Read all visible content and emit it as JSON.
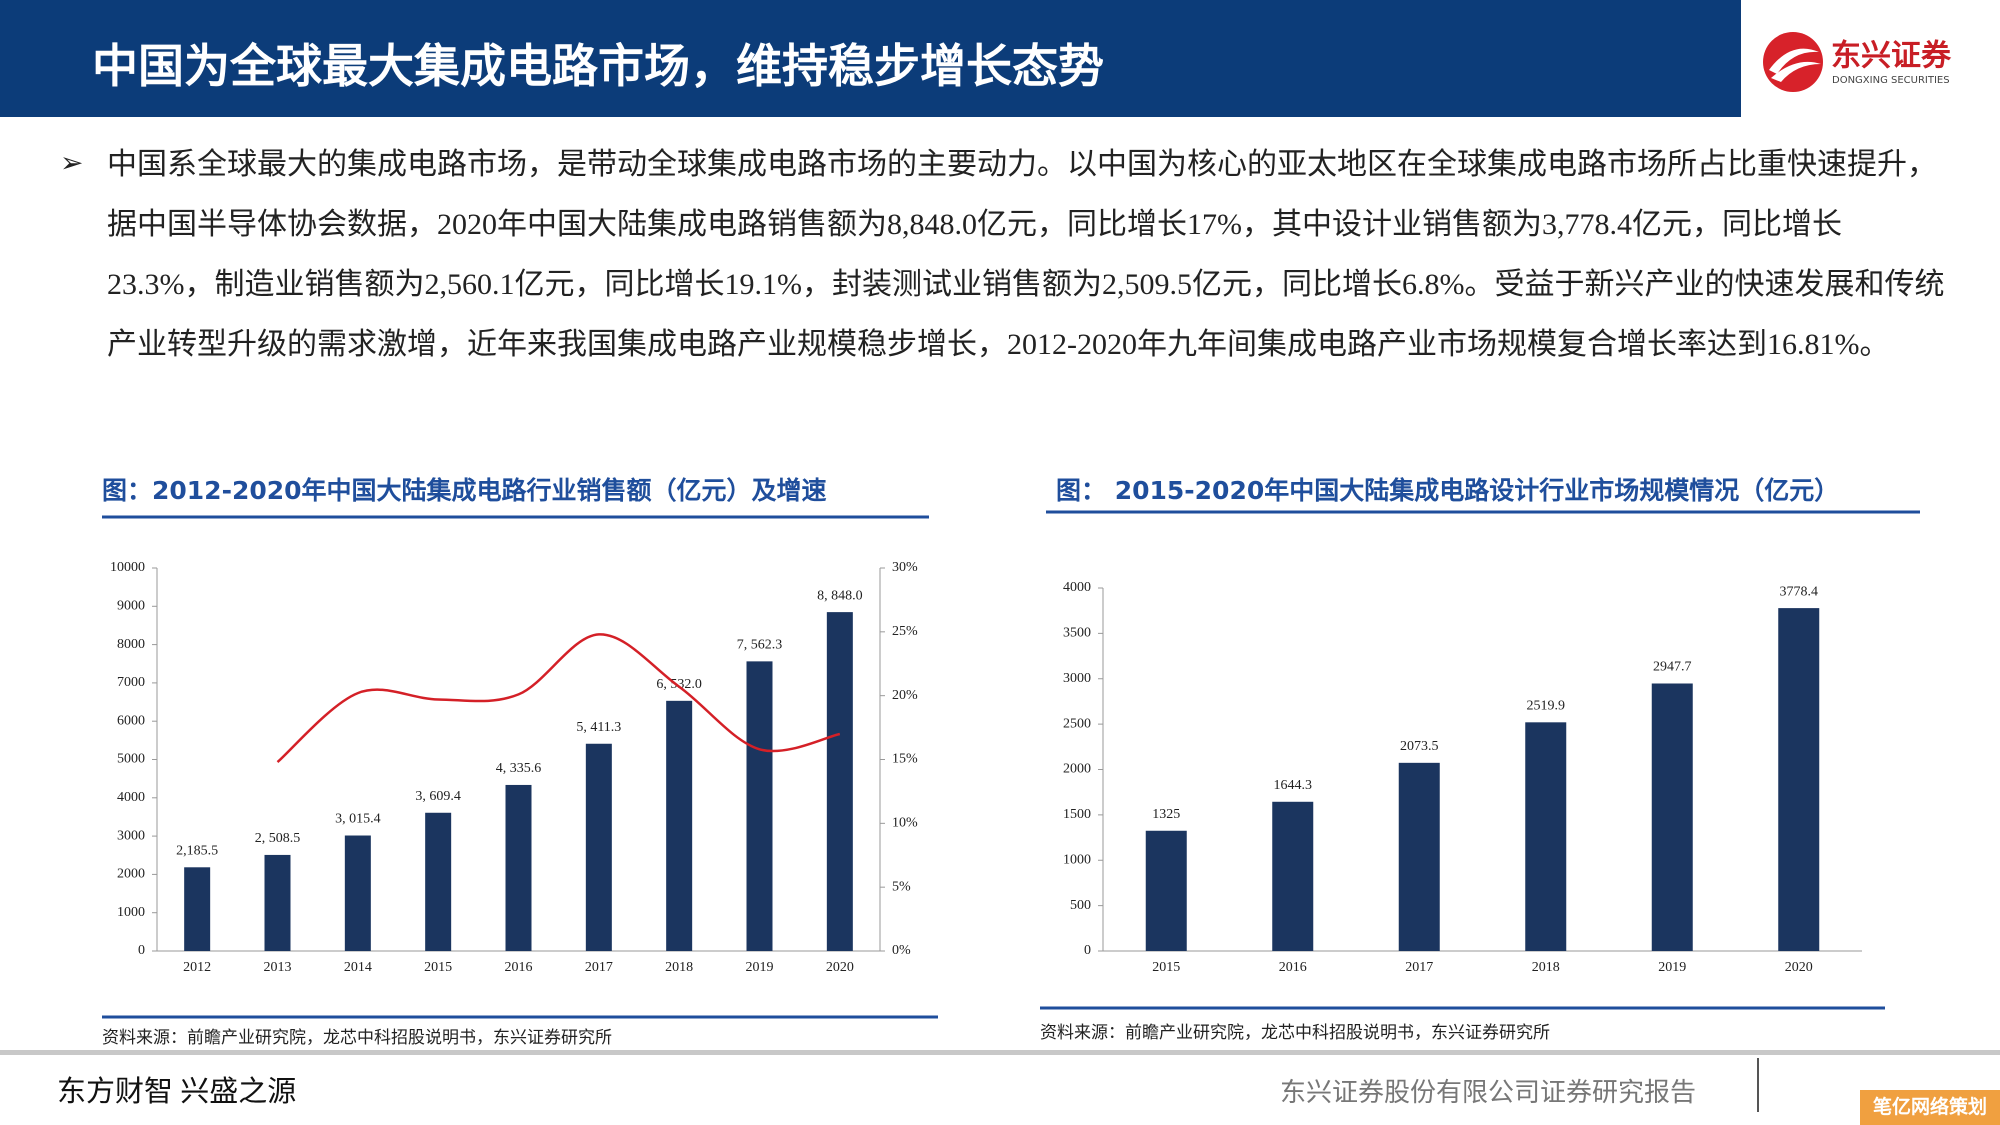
{
  "header": {
    "title": "中国为全球最大集成电路市场，维持稳步增长态势",
    "logo": "东兴证券",
    "logo_en": "DONGXING SECURITIES"
  },
  "body": {
    "text": "中国系全球最大的集成电路市场，是带动全球集成电路市场的主要动力。以中国为核心的亚太地区在全球集成电路市场所占比重快速提升，据中国半导体协会数据，2020年中国大陆集成电路销售额为8,848.0亿元，同比增长17%，其中设计业销售额为3,778.4亿元，同比增长23.3%，制造业销售额为2,560.1亿元，同比增长19.1%，封装测试业销售额为2,509.5亿元，同比增长6.8%。受益于新兴产业的快速发展和传统产业转型升级的需求激增，近年来我国集成电路产业规模稳步增长，2012-2020年九年间集成电路产业市场规模复合增长率达到16.81%。"
  },
  "chart_data": [
    {
      "type": "combo",
      "title": "图：2012-2020年中国大陆集成电路行业销售额（亿元）及增速",
      "source": "资料来源：前瞻产业研究院，龙芯中科招股说明书，东兴证券研究所",
      "categories": [
        "2012",
        "2013",
        "2014",
        "2015",
        "2016",
        "2017",
        "2018",
        "2019",
        "2020"
      ],
      "series": [
        {
          "type": "bar",
          "color": "#1b355f",
          "values": [
            2185.5,
            2508.5,
            3015.4,
            3609.4,
            4335.6,
            5411.3,
            6532.0,
            7562.3,
            8848.0
          ],
          "value_labels": [
            "2,185.5",
            "2, 508.5",
            "3, 015.4",
            "3, 609.4",
            "4, 335.6",
            "5, 411.3",
            "6, 532.0",
            "7, 562.3",
            "8, 848.0"
          ]
        },
        {
          "type": "line",
          "color": "#d42027",
          "axis": "y2",
          "values": [
            null,
            14.8,
            20.2,
            19.7,
            20.1,
            24.8,
            20.7,
            15.8,
            17.0
          ]
        }
      ],
      "ylim": [
        0,
        10000
      ],
      "yticks": [
        0,
        1000,
        2000,
        3000,
        4000,
        5000,
        6000,
        7000,
        8000,
        9000,
        10000
      ],
      "y2lim": [
        0,
        30
      ],
      "y2ticks": [
        {
          "value": 0,
          "label": "0%"
        },
        {
          "value": 5,
          "label": "5%"
        },
        {
          "value": 10,
          "label": "10%"
        },
        {
          "value": 15,
          "label": "15%"
        },
        {
          "value": 20,
          "label": "20%"
        },
        {
          "value": 25,
          "label": "25%"
        },
        {
          "value": 30,
          "label": "30%"
        }
      ]
    },
    {
      "type": "bar",
      "title": "图： 2015-2020年中国大陆集成电路设计行业市场规模情况（亿元）",
      "source": "资料来源：前瞻产业研究院，龙芯中科招股说明书，东兴证券研究所",
      "categories": [
        "2015",
        "2016",
        "2017",
        "2018",
        "2019",
        "2020"
      ],
      "series": [
        {
          "type": "bar",
          "color": "#1b355f",
          "values": [
            1325,
            1644.3,
            2073.5,
            2519.9,
            2947.7,
            3778.4
          ]
        }
      ],
      "ylim": [
        0,
        4000
      ],
      "yticks": [
        0,
        500,
        1000,
        1500,
        2000,
        2500,
        3000,
        3500,
        4000
      ]
    }
  ],
  "footer": {
    "slogan": "东方财智  兴盛之源",
    "company": "东兴证券股份有限公司证券研究报告",
    "watermark": "笔亿网络策划"
  }
}
